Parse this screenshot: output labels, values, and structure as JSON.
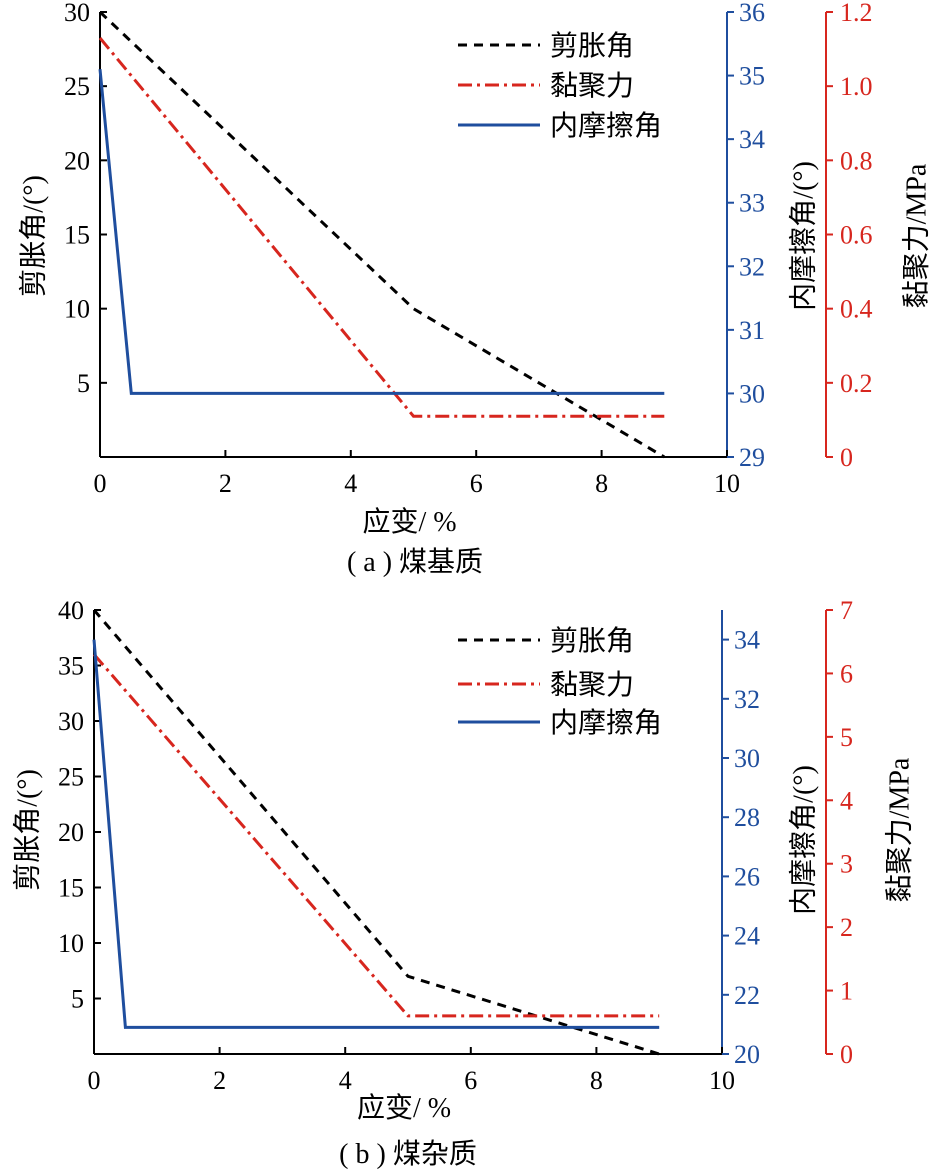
{
  "colors": {
    "dilatancy": "#000000",
    "cohesion": "#d7261e",
    "friction": "#1f4e9e",
    "axis_black": "#000000",
    "axis_blue": "#1f4e9e",
    "axis_red": "#d7261e"
  },
  "chart_data": [
    {
      "type": "line",
      "caption": "( a ) 煤基质",
      "xlabel": "应变/ %",
      "x_ticks": [
        "0",
        "2",
        "4",
        "6",
        "8",
        "10"
      ],
      "xlim": [
        0,
        10
      ],
      "y_left": {
        "label": "剪胀角/(°)",
        "lim": [
          0,
          30
        ],
        "ticks": [
          "5",
          "10",
          "15",
          "20",
          "25",
          "30"
        ]
      },
      "y_mid": {
        "label": "内摩擦角/(°)",
        "lim": [
          29,
          36
        ],
        "ticks": [
          "29",
          "30",
          "31",
          "32",
          "33",
          "34",
          "35",
          "36"
        ]
      },
      "y_right": {
        "label": "黏聚力/MPa",
        "lim": [
          0,
          1.2
        ],
        "ticks": [
          "0",
          "0.2",
          "0.4",
          "0.6",
          "0.8",
          "1.0",
          "1.2"
        ]
      },
      "legend": [
        "剪胀角",
        "黏聚力",
        "内摩擦角"
      ],
      "series": [
        {
          "name": "剪胀角",
          "axis": "left",
          "style": "dashed",
          "x": [
            0,
            5,
            9
          ],
          "y": [
            30,
            10,
            0
          ]
        },
        {
          "name": "黏聚力",
          "axis": "right",
          "style": "dashdot",
          "x": [
            0,
            5,
            9
          ],
          "y": [
            1.13,
            0.11,
            0.11
          ]
        },
        {
          "name": "内摩擦角",
          "axis": "mid",
          "style": "solid",
          "x": [
            0,
            0.5,
            9
          ],
          "y": [
            35.1,
            30,
            30
          ]
        }
      ]
    },
    {
      "type": "line",
      "caption": "( b ) 煤杂质",
      "xlabel": "应变/ %",
      "x_ticks": [
        "0",
        "2",
        "4",
        "6",
        "8",
        "10"
      ],
      "xlim": [
        0,
        10
      ],
      "y_left": {
        "label": "剪胀角/(°)",
        "lim": [
          0,
          40
        ],
        "ticks": [
          "5",
          "10",
          "15",
          "20",
          "25",
          "30",
          "35",
          "40"
        ]
      },
      "y_mid": {
        "label": "内摩擦角/(°)",
        "lim": [
          20,
          35
        ],
        "ticks": [
          "20",
          "22",
          "24",
          "26",
          "28",
          "30",
          "32",
          "34"
        ]
      },
      "y_right": {
        "label": "黏聚力/MPa",
        "lim": [
          0,
          7
        ],
        "ticks": [
          "0",
          "1",
          "2",
          "3",
          "4",
          "5",
          "6",
          "7"
        ]
      },
      "legend": [
        "剪胀角",
        "黏聚力",
        "内摩擦角"
      ],
      "series": [
        {
          "name": "剪胀角",
          "axis": "left",
          "style": "dashed",
          "x": [
            0,
            5,
            9
          ],
          "y": [
            40,
            7,
            0
          ]
        },
        {
          "name": "黏聚力",
          "axis": "right",
          "style": "dashdot",
          "x": [
            0,
            5,
            9
          ],
          "y": [
            6.3,
            0.6,
            0.6
          ]
        },
        {
          "name": "内摩擦角",
          "axis": "mid",
          "style": "solid",
          "x": [
            0,
            0.5,
            9
          ],
          "y": [
            34,
            20.9,
            20.9
          ]
        }
      ]
    }
  ]
}
